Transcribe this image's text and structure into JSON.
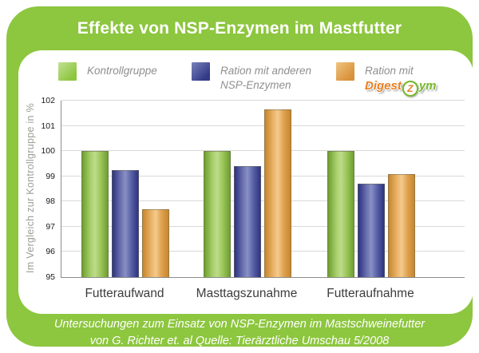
{
  "title": "Effekte von NSP-Enzymen im Mastfutter",
  "colors": {
    "brand_green": "#8dc63f",
    "bar_green": "#8dc63f",
    "bar_blue": "#3c4294",
    "bar_orange": "#e0a24b",
    "logo_orange": "#e87f1e",
    "logo_green": "#76b82a"
  },
  "legend": [
    {
      "label": "Kontrollgruppe"
    },
    {
      "label_line1": "Ration mit anderen",
      "label_line2": "NSP-Enzymen"
    },
    {
      "label": "Ration mit",
      "logo_part1": "Digest",
      "logo_badge": "Z",
      "logo_part2": "ym"
    }
  ],
  "chart_data": {
    "type": "bar",
    "categories": [
      "Futteraufwand",
      "Masttagszunahme",
      "Futteraufnahme"
    ],
    "series": [
      {
        "name": "Kontrollgruppe",
        "color": "#8dc63f",
        "values": [
          100,
          100,
          100
        ]
      },
      {
        "name": "Ration mit anderen NSP-Enzymen",
        "color": "#3c4294",
        "values": [
          99.25,
          99.4,
          98.7
        ]
      },
      {
        "name": "Ration mit DigestZym",
        "color": "#e0a24b",
        "values": [
          97.7,
          101.65,
          99.1
        ]
      }
    ],
    "ylabel": "Im Vergleich zur Kontrollgruppe in %",
    "ylim": [
      95,
      102
    ],
    "yticks": [
      95,
      96,
      97,
      98,
      99,
      100,
      101,
      102
    ],
    "grid": true,
    "legend_position": "top"
  },
  "footer": {
    "line1": "Untersuchungen zum Einsatz von NSP-Enzymen im Mastschweinefutter",
    "line2": "von G. Richter et. al Quelle: Tierärztliche Umschau 5/2008"
  }
}
